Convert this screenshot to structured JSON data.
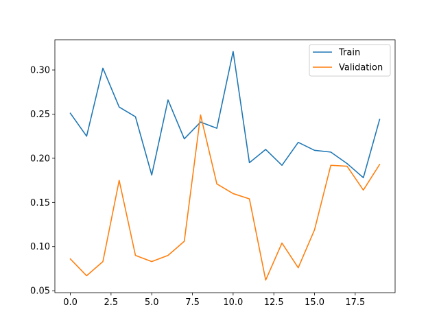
{
  "chart_data": {
    "type": "line",
    "x": [
      0,
      1,
      2,
      3,
      4,
      5,
      6,
      7,
      8,
      9,
      10,
      11,
      12,
      13,
      14,
      15,
      16,
      17,
      18,
      19
    ],
    "series": [
      {
        "name": "Train",
        "color": "#1f77b4",
        "values": [
          0.251,
          0.225,
          0.302,
          0.258,
          0.247,
          0.181,
          0.266,
          0.222,
          0.241,
          0.234,
          0.321,
          0.195,
          0.21,
          0.192,
          0.218,
          0.209,
          0.207,
          0.194,
          0.178,
          0.244
        ]
      },
      {
        "name": "Validation",
        "color": "#ff7f0e",
        "values": [
          0.086,
          0.067,
          0.083,
          0.175,
          0.09,
          0.083,
          0.09,
          0.106,
          0.249,
          0.171,
          0.16,
          0.154,
          0.062,
          0.104,
          0.076,
          0.119,
          0.192,
          0.191,
          0.164,
          0.193
        ]
      }
    ],
    "xlim": [
      -0.95,
      19.95
    ],
    "ylim": [
      0.0478,
      0.3342
    ],
    "xticks": [
      0,
      2.5,
      5,
      7.5,
      10,
      12.5,
      15,
      17.5
    ],
    "xtick_labels": [
      "0.0",
      "2.5",
      "5.0",
      "7.5",
      "10.0",
      "12.5",
      "15.0",
      "17.5"
    ],
    "yticks": [
      0.05,
      0.1,
      0.15,
      0.2,
      0.25,
      0.3
    ],
    "ytick_labels": [
      "0.05",
      "0.10",
      "0.15",
      "0.20",
      "0.25",
      "0.30"
    ],
    "title": "",
    "xlabel": "",
    "ylabel": "",
    "grid": false,
    "legend_position": "top-right"
  }
}
